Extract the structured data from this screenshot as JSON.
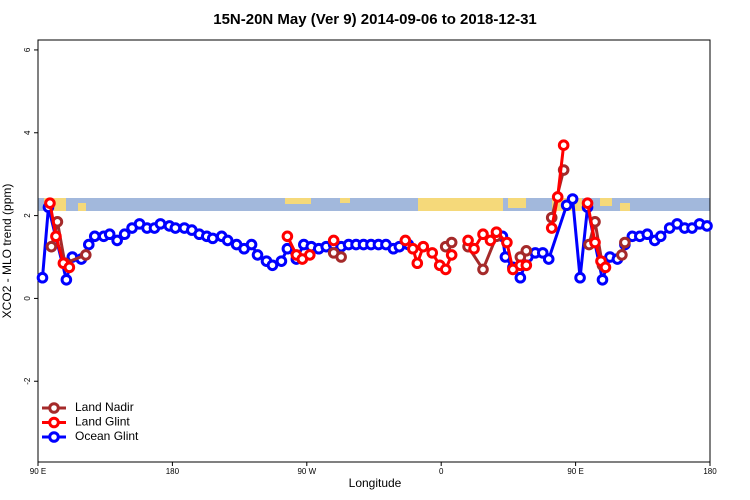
{
  "chart_data": {
    "type": "line",
    "title": "15N-20N May (Ver 9)   2014-09-06 to 2018-12-31",
    "x_label": "Longitude",
    "y_label": "XCO2 - MLO trend (ppm)",
    "xlim": [
      90,
      540
    ],
    "ylim": [
      -3.95,
      6.24
    ],
    "xticks": [
      {
        "value": 90,
        "label": "90 E"
      },
      180,
      {
        "value": 270,
        "label": "90 W"
      },
      {
        "value": 360,
        "label": "0"
      },
      {
        "value": 450,
        "label": "90 E"
      },
      {
        "value": 540,
        "label": "180"
      }
    ],
    "yticks": [
      -2,
      0,
      2,
      4,
      6
    ],
    "legend": "bottom-left",
    "series": [
      {
        "name": "Land Nadir",
        "color": "#a52a2a",
        "x": [
          99,
          103,
          108,
          122,
          null,
          288,
          293,
          null,
          363,
          367,
          null,
          378,
          388,
          397,
          null,
          413,
          417,
          null,
          434,
          442,
          null,
          459,
          463,
          468,
          null,
          481,
          483
        ],
        "values": [
          1.25,
          1.85,
          0.85,
          1.05,
          null,
          1.1,
          1.0,
          null,
          1.25,
          1.35,
          null,
          1.25,
          0.7,
          1.5,
          null,
          1.0,
          1.15,
          null,
          1.95,
          3.1,
          null,
          1.3,
          1.85,
          0.8,
          null,
          1.05,
          1.35
        ]
      },
      {
        "name": "Land Glint",
        "color": "#ff0000",
        "x": [
          98,
          102,
          107,
          111,
          null,
          257,
          263,
          267,
          272,
          null,
          288,
          null,
          336,
          341,
          344,
          348,
          354,
          359,
          363,
          367,
          null,
          378,
          382,
          388,
          393,
          397,
          404,
          408,
          413,
          417,
          null,
          434,
          438,
          442,
          null,
          458,
          463,
          467,
          470
        ],
        "values": [
          2.3,
          1.5,
          0.85,
          0.75,
          null,
          1.5,
          1.05,
          0.95,
          1.05,
          null,
          1.4,
          null,
          1.4,
          1.2,
          0.85,
          1.25,
          1.1,
          0.8,
          0.7,
          1.05,
          null,
          1.4,
          1.2,
          1.55,
          1.4,
          1.6,
          1.35,
          0.7,
          0.8,
          0.8,
          null,
          1.7,
          2.45,
          3.7,
          null,
          2.3,
          1.35,
          0.9,
          0.75
        ]
      },
      {
        "name": "Ocean Glint",
        "color": "#0000ff",
        "x": [
          93,
          97,
          109,
          113,
          119,
          124,
          128,
          134,
          138,
          143,
          148,
          153,
          158,
          163,
          168,
          172,
          178,
          182,
          188,
          193,
          198,
          203,
          207,
          213,
          217,
          223,
          228,
          233,
          237,
          243,
          247,
          253,
          257,
          263,
          268,
          273,
          278,
          283,
          288,
          293,
          298,
          303,
          308,
          313,
          318,
          323,
          328,
          332,
          338,
          null,
          401,
          403,
          408,
          413,
          418,
          423,
          428,
          432,
          444,
          448,
          453,
          458,
          468,
          473,
          478,
          483,
          488,
          493,
          498,
          503,
          507,
          513,
          518,
          523,
          528,
          533,
          538
        ],
        "values": [
          0.5,
          2.2,
          0.45,
          1.0,
          0.95,
          1.3,
          1.5,
          1.5,
          1.55,
          1.4,
          1.55,
          1.7,
          1.8,
          1.7,
          1.7,
          1.8,
          1.75,
          1.7,
          1.7,
          1.65,
          1.55,
          1.5,
          1.45,
          1.5,
          1.4,
          1.3,
          1.2,
          1.3,
          1.05,
          0.9,
          0.8,
          0.9,
          1.2,
          0.95,
          1.3,
          1.25,
          1.2,
          1.25,
          1.3,
          1.25,
          1.3,
          1.3,
          1.3,
          1.3,
          1.3,
          1.3,
          1.2,
          1.25,
          1.3,
          null,
          1.5,
          1.0,
          0.75,
          0.5,
          1.0,
          1.1,
          1.1,
          0.95,
          2.25,
          2.4,
          0.5,
          2.2,
          0.45,
          1.0,
          0.95,
          1.3,
          1.5,
          1.5,
          1.55,
          1.4,
          1.5,
          1.7,
          1.8,
          1.7,
          1.7,
          1.8,
          1.75
        ]
      }
    ]
  }
}
